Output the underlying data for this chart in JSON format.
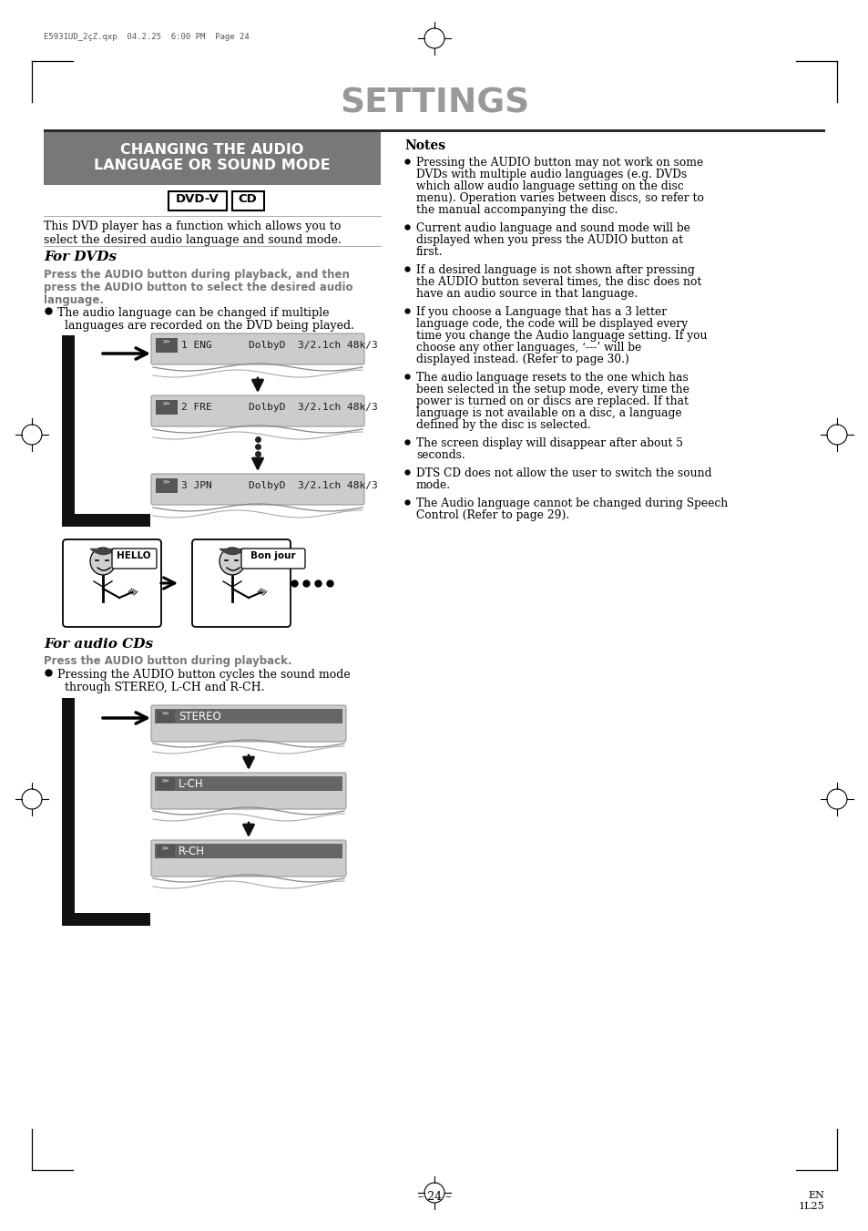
{
  "title": "SETTINGS",
  "header_text_line1": "CHANGING THE AUDIO",
  "header_text_line2": "LANGUAGE OR SOUND MODE",
  "dvdv_label": "DVD-V",
  "cd_label": "CD",
  "intro_text": "This DVD player has a function which allows you to\nselect the desired audio language and sound mode.",
  "for_dvds_title": "For DVDs",
  "for_dvds_subtitle_line1": "Press the AUDIO button during playback, and then",
  "for_dvds_subtitle_line2": "press the AUDIO button to select the desired audio",
  "for_dvds_subtitle_line3": "language.",
  "for_dvds_bullet_line1": "The audio language can be changed if multiple",
  "for_dvds_bullet_line2": "  languages are recorded on the DVD being played.",
  "dvd_screens": [
    {
      "label": "1 ENG",
      "info": "DolbyD  3/2.1ch 48k/3"
    },
    {
      "label": "2 FRE",
      "info": "DolbyD  3/2.1ch 48k/3"
    },
    {
      "label": "3 JPN",
      "info": "DolbyD  3/2.1ch 48k/3"
    }
  ],
  "for_cds_title": "For audio CDs",
  "for_cds_subtitle": "Press the AUDIO button during playback.",
  "for_cds_bullet_line1": "Pressing the AUDIO button cycles the sound mode",
  "for_cds_bullet_line2": "  through STEREO, L-CH and R-CH.",
  "cd_screens": [
    "STEREO",
    "L-CH",
    "R-CH"
  ],
  "notes_title": "Notes",
  "notes": [
    "Pressing the AUDIO button may not work on some DVDs with multiple audio languages (e.g. DVDs which allow audio language setting on the disc menu). Operation varies between discs, so refer to the manual accompanying the disc.",
    "Current audio language and sound mode will be displayed when you press the AUDIO button at first.",
    "If a desired language is not shown after pressing the AUDIO button several times, the disc does not have an audio source in that language.",
    "If you choose a Language that has a 3 letter language code, the code will be displayed every time you change the Audio language setting. If you choose any other languages, ‘---’ will be displayed instead. (Refer to page 30.)",
    "The audio language resets to the one which has been selected in the setup mode, every time the power is turned on or discs are replaced. If that language is not available on a disc, a language defined by the disc is selected.",
    "The screen display will disappear after about 5 seconds.",
    "DTS CD does not allow the user to switch the sound mode.",
    "The Audio language cannot be changed during Speech Control (Refer to page 29)."
  ],
  "header_meta": "E5931UD_2çZ.qxp  04.2.25  6:00 PM  Page 24",
  "page_number": "– 24 –",
  "page_code_line1": "EN",
  "page_code_line2": "1L25"
}
